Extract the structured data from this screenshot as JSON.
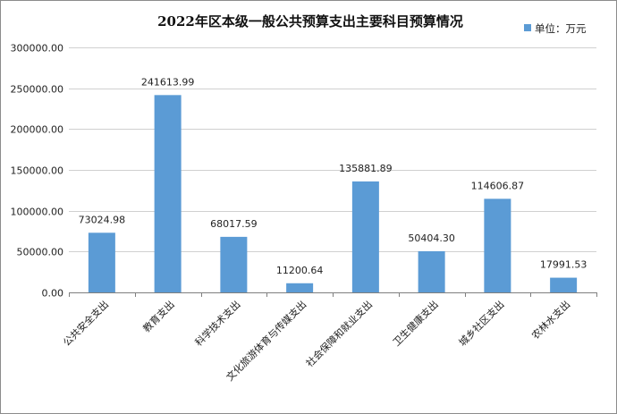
{
  "chart_data": {
    "type": "bar",
    "title": "2022年区本级一般公共预算支出主要科目预算情况",
    "legend": {
      "label": "单位：万元",
      "position": "top-right"
    },
    "categories": [
      "公共安全支出",
      "教育支出",
      "科学技术支出",
      "文化旅游体育与传媒支出",
      "社会保障和就业支出",
      "卫生健康支出",
      "城乡社区支出",
      "农林水支出"
    ],
    "values": [
      73024.98,
      241613.99,
      68017.59,
      11200.64,
      135881.89,
      50404.3,
      114606.87,
      17991.53
    ],
    "value_labels": [
      "73024.98",
      "241613.99",
      "68017.59",
      "11200.64",
      "135881.89",
      "50404.30",
      "114606.87",
      "17991.53"
    ],
    "ylim": [
      0,
      300000
    ],
    "yticks": [
      0,
      50000,
      100000,
      150000,
      200000,
      250000,
      300000
    ],
    "ytick_labels": [
      "0.00",
      "50000.00",
      "100000.00",
      "150000.00",
      "200000.00",
      "250000.00",
      "300000.00"
    ],
    "grid": true,
    "colors": {
      "bar": "#5b9bd5"
    }
  }
}
